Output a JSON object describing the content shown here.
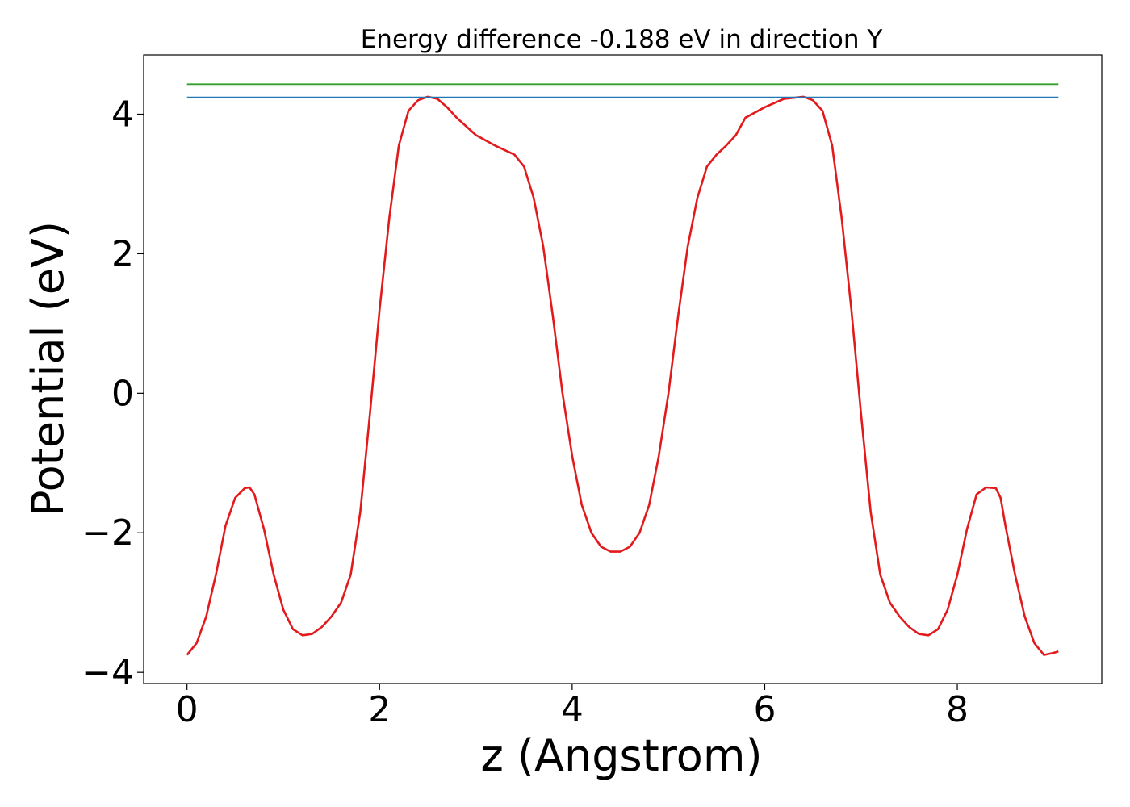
{
  "chart_data": {
    "type": "line",
    "title": "Energy difference -0.188 eV in direction Y",
    "xlabel": "z (Angstrom)",
    "ylabel": "Potential (eV)",
    "xlim": [
      -0.45,
      9.5
    ],
    "ylim": [
      -4.16,
      4.85
    ],
    "x_ticks": [
      0,
      2,
      4,
      6,
      8
    ],
    "x_tick_labels": [
      "0",
      "2",
      "4",
      "6",
      "8"
    ],
    "y_ticks": [
      -4,
      -2,
      0,
      2,
      4
    ],
    "y_tick_labels": [
      "−4",
      "−2",
      "0",
      "2",
      "4"
    ],
    "grid": false,
    "colors": {
      "potential": "#e31a1c",
      "level_upper": "#33a02c",
      "level_lower": "#1f78b4"
    },
    "series": [
      {
        "kind": "curve",
        "color": "#e31a1c",
        "x": [
          0.0,
          0.1,
          0.2,
          0.3,
          0.4,
          0.5,
          0.6,
          0.65,
          0.7,
          0.8,
          0.9,
          1.0,
          1.1,
          1.2,
          1.3,
          1.4,
          1.5,
          1.6,
          1.7,
          1.8,
          1.9,
          2.0,
          2.1,
          2.2,
          2.3,
          2.4,
          2.5,
          2.6,
          2.7,
          2.8,
          3.0,
          3.2,
          3.4,
          3.5,
          3.6,
          3.7,
          3.8,
          3.9,
          4.0,
          4.1,
          4.2,
          4.3,
          4.4,
          4.5,
          4.6,
          4.7,
          4.8,
          4.9,
          5.0,
          5.1,
          5.2,
          5.3,
          5.4,
          5.5,
          5.6,
          5.7,
          5.8,
          6.0,
          6.2,
          6.4,
          6.5,
          6.6,
          6.7,
          6.8,
          6.9,
          7.0,
          7.1,
          7.2,
          7.3,
          7.4,
          7.5,
          7.6,
          7.7,
          7.8,
          7.9,
          8.0,
          8.1,
          8.2,
          8.3,
          8.4,
          8.45,
          8.5,
          8.6,
          8.7,
          8.8,
          8.9,
          9.0,
          9.05
        ],
        "y": [
          -3.75,
          -3.58,
          -3.2,
          -2.6,
          -1.9,
          -1.5,
          -1.36,
          -1.35,
          -1.45,
          -1.95,
          -2.6,
          -3.1,
          -3.38,
          -3.47,
          -3.45,
          -3.35,
          -3.2,
          -3.0,
          -2.6,
          -1.7,
          -0.3,
          1.2,
          2.5,
          3.55,
          4.05,
          4.2,
          4.25,
          4.22,
          4.1,
          3.95,
          3.7,
          3.55,
          3.42,
          3.25,
          2.8,
          2.1,
          1.1,
          0.0,
          -0.9,
          -1.6,
          -2.0,
          -2.2,
          -2.27,
          -2.27,
          -2.2,
          -2.0,
          -1.6,
          -0.9,
          0.0,
          1.1,
          2.1,
          2.8,
          3.25,
          3.42,
          3.55,
          3.7,
          3.95,
          4.1,
          4.22,
          4.25,
          4.2,
          4.05,
          3.55,
          2.5,
          1.2,
          -0.3,
          -1.7,
          -2.6,
          -3.0,
          -3.2,
          -3.35,
          -3.45,
          -3.47,
          -3.38,
          -3.1,
          -2.6,
          -1.95,
          -1.45,
          -1.35,
          -1.36,
          -1.5,
          -1.9,
          -2.6,
          -3.2,
          -3.58,
          -3.75,
          -3.72,
          -3.7
        ]
      },
      {
        "kind": "level",
        "color": "#33a02c",
        "x": [
          0.0,
          9.05
        ],
        "y": [
          4.43,
          4.43
        ]
      },
      {
        "kind": "level",
        "color": "#1f78b4",
        "x": [
          0.0,
          9.05
        ],
        "y": [
          4.24,
          4.24
        ]
      }
    ]
  }
}
